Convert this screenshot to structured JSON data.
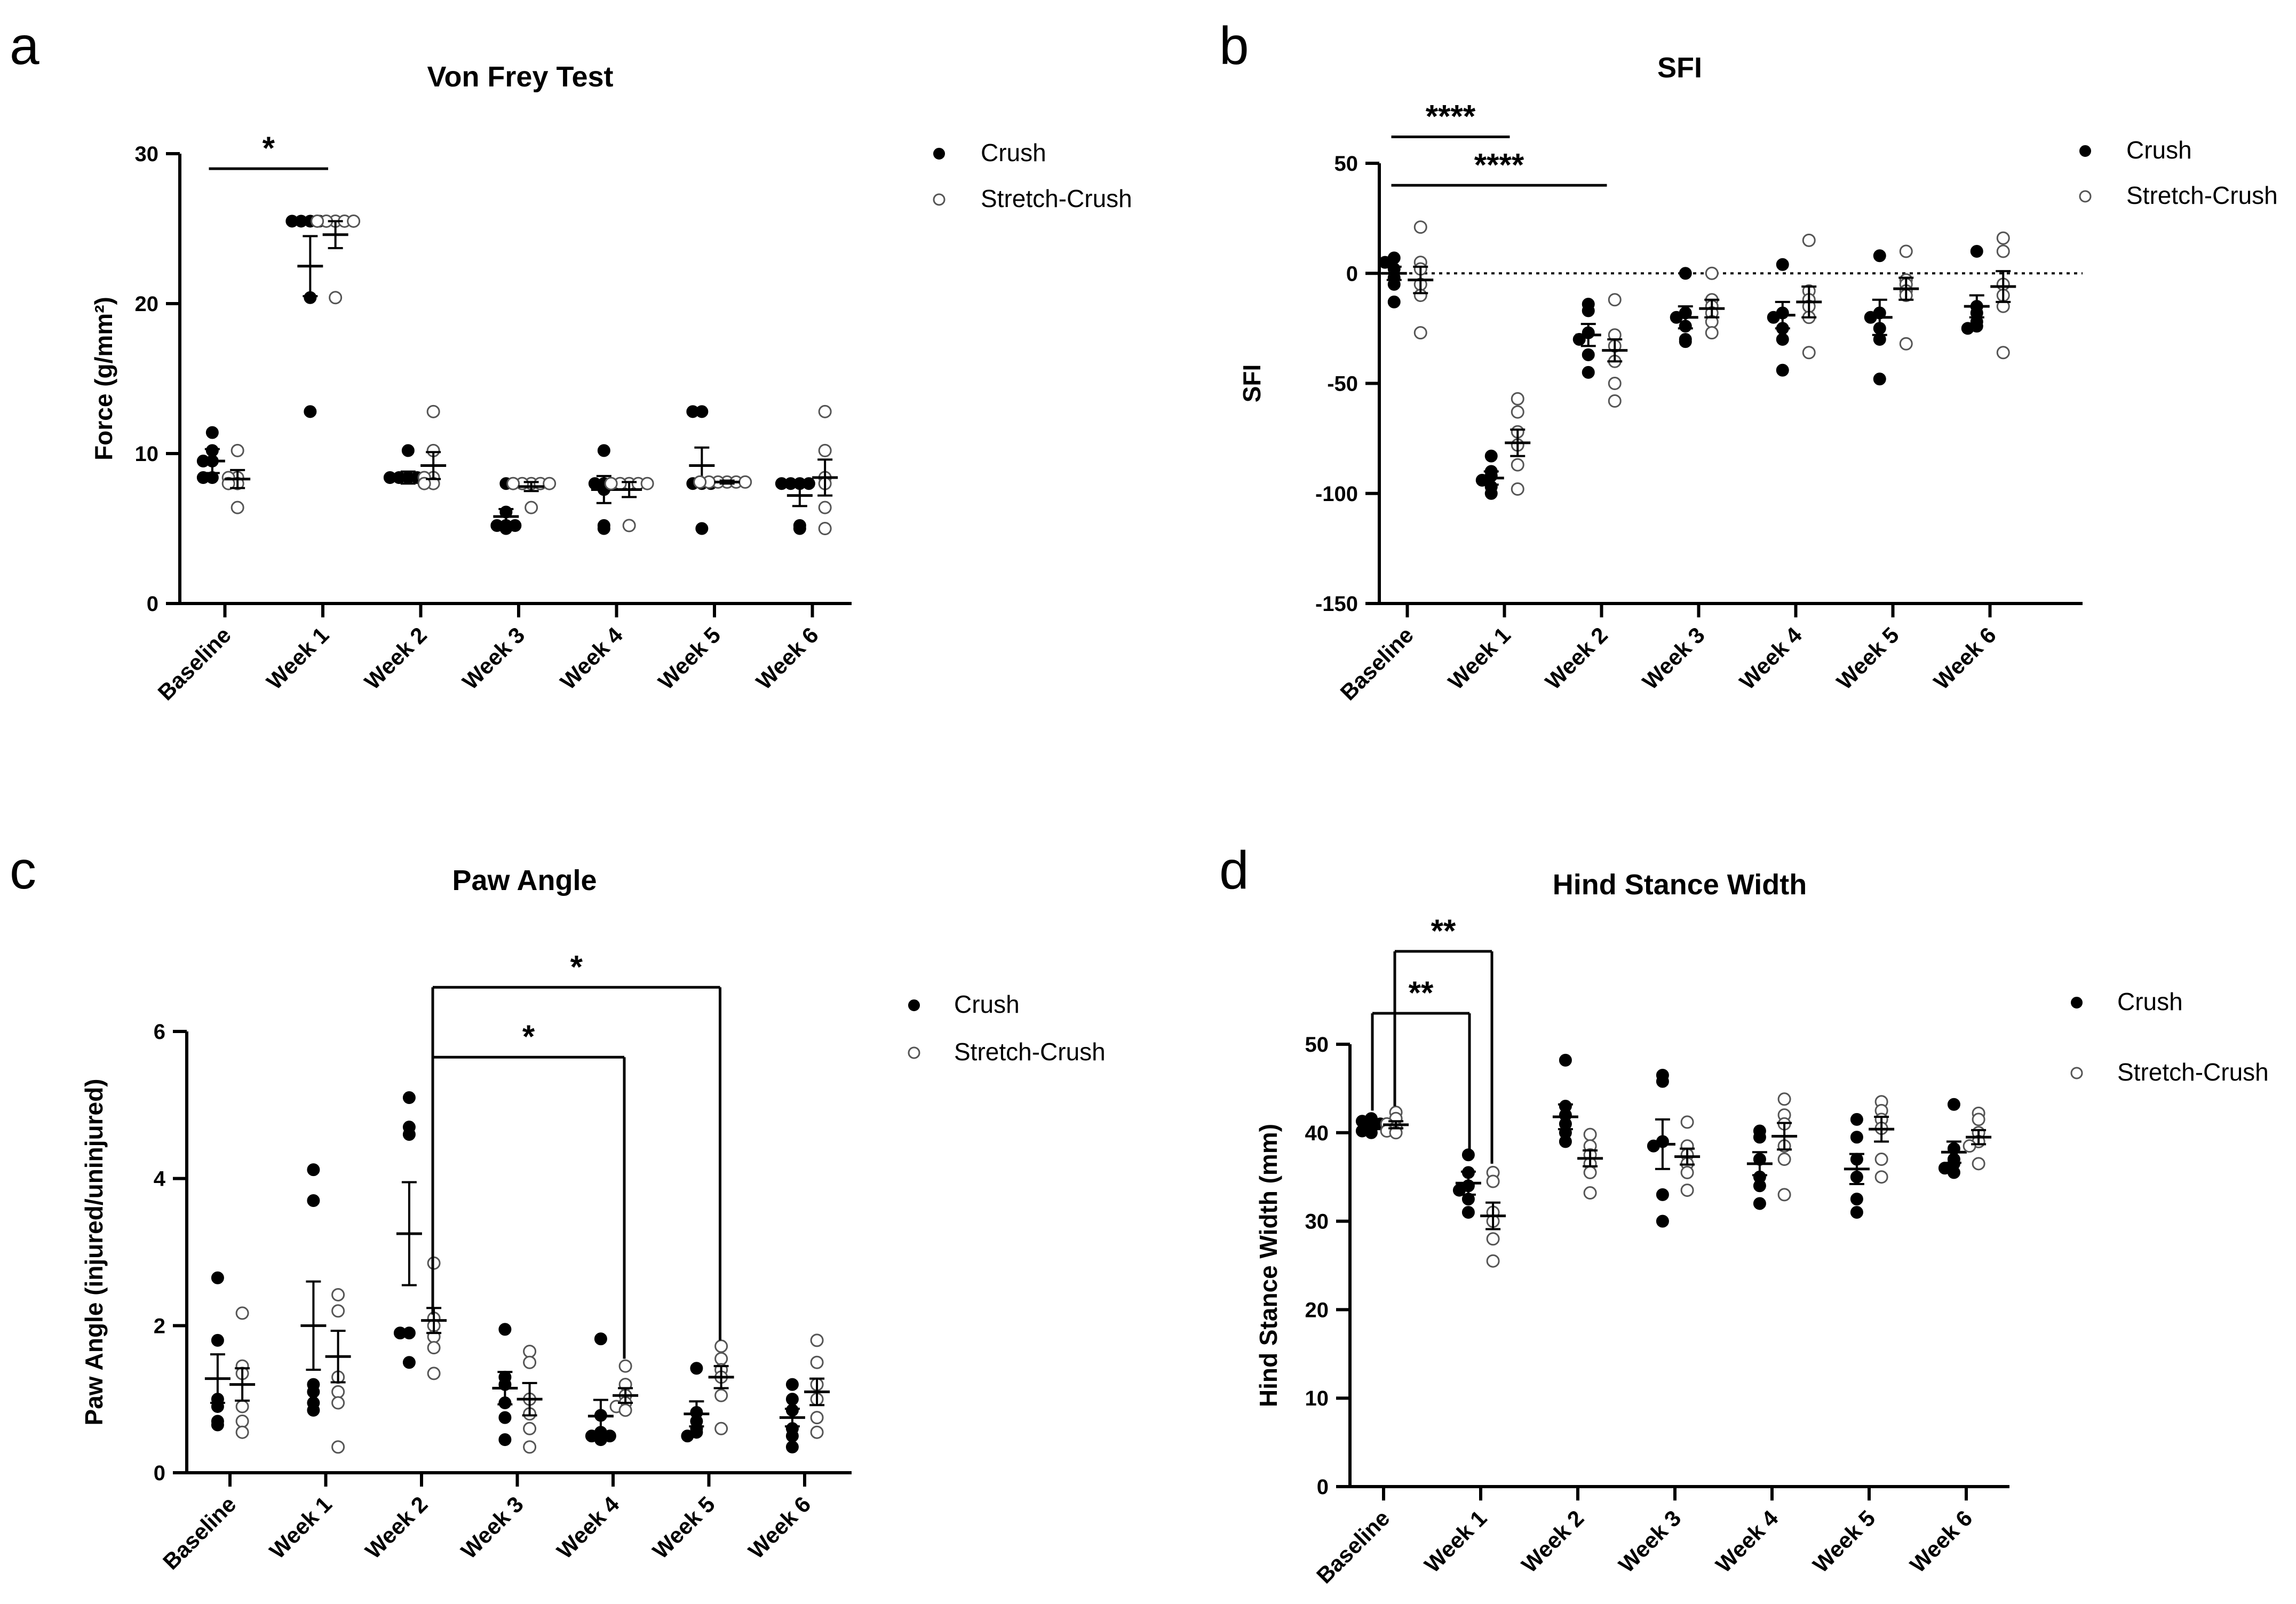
{
  "legend": {
    "series": [
      "Crush",
      "Stretch-Crush"
    ]
  },
  "chart_data": [
    {
      "panel": "a",
      "type": "scatter",
      "title": "Von Frey Test",
      "ylabel": "Force (g/mm²)",
      "xlabel": "",
      "categories": [
        "Baseline",
        "Week 1",
        "Week 2",
        "Week 3",
        "Week 4",
        "Week 5",
        "Week 6"
      ],
      "ylim": [
        0,
        30
      ],
      "yticks": [
        0,
        10,
        20,
        30
      ],
      "ytick_labels": [
        "0",
        "10",
        "20",
        "30"
      ],
      "series": [
        {
          "name": "Crush",
          "marker": "filled",
          "mean": [
            9.5,
            22.5,
            8.4,
            5.8,
            7.6,
            9.2,
            7.2
          ],
          "sem": [
            0.8,
            2.0,
            0.4,
            0.5,
            0.9,
            1.2,
            0.7
          ],
          "points": [
            [
              11.4,
              10.2,
              9.5,
              9.5,
              8.4,
              8.4
            ],
            [
              25.5,
              25.5,
              25.5,
              20.4,
              25.5,
              12.8
            ],
            [
              10.2,
              8.4,
              8.4,
              8.4,
              8.4,
              8.2
            ],
            [
              8.0,
              6.1,
              5.2,
              5.2,
              5.2,
              5.0
            ],
            [
              10.2,
              8.0,
              8.0,
              7.6,
              5.2,
              5.0
            ],
            [
              12.8,
              12.8,
              8.0,
              8.0,
              8.0,
              5.0
            ],
            [
              8.0,
              8.0,
              8.0,
              8.0,
              5.2,
              5.0
            ]
          ]
        },
        {
          "name": "Stretch-Crush",
          "marker": "open",
          "mean": [
            8.3,
            24.6,
            9.2,
            7.8,
            7.6,
            8.1,
            8.4
          ],
          "sem": [
            0.6,
            0.9,
            0.9,
            0.3,
            0.5,
            0.1,
            1.2
          ],
          "points": [
            [
              10.2,
              8.4,
              8.4,
              8.0,
              8.0,
              6.4
            ],
            [
              25.5,
              25.5,
              25.5,
              25.5,
              25.5,
              20.4
            ],
            [
              12.8,
              10.2,
              8.4,
              8.4,
              8.0,
              8.0
            ],
            [
              8.0,
              8.0,
              8.0,
              8.0,
              8.0,
              6.4
            ],
            [
              8.0,
              8.0,
              8.0,
              8.0,
              8.0,
              5.2
            ],
            [
              8.1,
              8.1,
              8.1,
              8.1,
              8.1,
              8.1
            ],
            [
              12.8,
              10.2,
              8.4,
              8.0,
              6.4,
              5.0
            ]
          ]
        }
      ],
      "significance": [
        {
          "label": "*",
          "from": "Baseline",
          "to": "Week 1",
          "y": 29.0
        }
      ]
    },
    {
      "panel": "b",
      "type": "scatter",
      "title": "SFI",
      "ylabel": "SFI",
      "xlabel": "",
      "categories": [
        "Baseline",
        "Week 1",
        "Week 2",
        "Week 3",
        "Week 4",
        "Week 5",
        "Week 6"
      ],
      "ylim": [
        -150,
        50
      ],
      "yticks": [
        -150,
        -100,
        -50,
        0,
        50
      ],
      "ytick_labels": [
        "-150",
        "-100",
        "-50",
        "0",
        "50"
      ],
      "reference_line": 0,
      "series": [
        {
          "name": "Crush",
          "marker": "filled",
          "mean": [
            0,
            -93,
            -28,
            -20,
            -19,
            -20,
            -15
          ],
          "sem": [
            3,
            3,
            5,
            5,
            6,
            8,
            5
          ],
          "points": [
            [
              7,
              5,
              2,
              -2,
              -5,
              -13
            ],
            [
              -83,
              -90,
              -92,
              -94,
              -97,
              -100
            ],
            [
              -14,
              -17,
              -27,
              -30,
              -37,
              -45
            ],
            [
              0,
              -18,
              -20,
              -24,
              -30,
              -31
            ],
            [
              4,
              -18,
              -20,
              -25,
              -30,
              -44
            ],
            [
              8,
              -18,
              -20,
              -25,
              -30,
              -48
            ],
            [
              10,
              -15,
              -18,
              -22,
              -24,
              -25
            ]
          ]
        },
        {
          "name": "Stretch-Crush",
          "marker": "open",
          "mean": [
            -3,
            -77,
            -35,
            -16,
            -13,
            -7,
            -6
          ],
          "sem": [
            6,
            6,
            5,
            4,
            7,
            5,
            7
          ],
          "points": [
            [
              21,
              5,
              2,
              -5,
              -10,
              -27
            ],
            [
              -57,
              -63,
              -72,
              -78,
              -87,
              -98
            ],
            [
              -12,
              -28,
              -33,
              -40,
              -50,
              -58
            ],
            [
              0,
              -12,
              -15,
              -18,
              -22,
              -27
            ],
            [
              15,
              -8,
              -12,
              -15,
              -20,
              -36
            ],
            [
              10,
              -3,
              -5,
              -8,
              -10,
              -32
            ],
            [
              16,
              10,
              -5,
              -10,
              -15,
              -36
            ]
          ]
        }
      ],
      "significance": [
        {
          "label": "****",
          "from": "Baseline",
          "to": "Week 1",
          "y": 62
        },
        {
          "label": "****",
          "from": "Baseline",
          "to": "Week 2",
          "y": 40
        }
      ]
    },
    {
      "panel": "c",
      "type": "scatter",
      "title": "Paw Angle",
      "ylabel": "Paw Angle (injured/uninjured)",
      "xlabel": "",
      "categories": [
        "Baseline",
        "Week 1",
        "Week 2",
        "Week 3",
        "Week 4",
        "Week 5",
        "Week 6"
      ],
      "ylim": [
        0,
        6
      ],
      "yticks": [
        0,
        2,
        4,
        6
      ],
      "ytick_labels": [
        "0",
        "2",
        "4",
        "6"
      ],
      "series": [
        {
          "name": "Crush",
          "marker": "filled",
          "mean": [
            1.28,
            2.0,
            3.25,
            1.15,
            0.77,
            0.8,
            0.75
          ],
          "sem": [
            0.33,
            0.6,
            0.7,
            0.22,
            0.22,
            0.17,
            0.12
          ],
          "points": [
            [
              2.65,
              1.8,
              1.0,
              0.9,
              0.7,
              0.65
            ],
            [
              4.12,
              3.7,
              1.2,
              1.1,
              0.95,
              0.85
            ],
            [
              5.1,
              4.7,
              4.6,
              1.9,
              1.9,
              1.5
            ],
            [
              1.95,
              1.3,
              1.2,
              0.95,
              0.75,
              0.45
            ],
            [
              1.82,
              0.78,
              0.55,
              0.5,
              0.5,
              0.45
            ],
            [
              1.42,
              0.82,
              0.7,
              0.6,
              0.55,
              0.5
            ],
            [
              1.2,
              1.0,
              0.85,
              0.6,
              0.5,
              0.35
            ]
          ]
        },
        {
          "name": "Stretch-Crush",
          "marker": "open",
          "mean": [
            1.2,
            1.58,
            2.07,
            1.0,
            1.05,
            1.3,
            1.1
          ],
          "sem": [
            0.22,
            0.35,
            0.17,
            0.22,
            0.1,
            0.15,
            0.18
          ],
          "points": [
            [
              2.17,
              1.45,
              1.35,
              0.9,
              0.7,
              0.55
            ],
            [
              2.42,
              2.2,
              1.3,
              1.1,
              0.95,
              0.35
            ],
            [
              2.85,
              2.1,
              2.0,
              1.85,
              1.7,
              1.35
            ],
            [
              1.65,
              1.5,
              1.0,
              0.8,
              0.6,
              0.35
            ],
            [
              1.45,
              1.2,
              1.05,
              0.95,
              0.9,
              0.85
            ],
            [
              1.72,
              1.55,
              1.4,
              1.3,
              1.05,
              0.6
            ],
            [
              1.8,
              1.5,
              1.2,
              1.0,
              0.75,
              0.55
            ]
          ]
        }
      ],
      "significance": [
        {
          "label": "*",
          "from": "Week 2",
          "to": "Week 4",
          "y": 5.65,
          "drop_to": [
            2.15,
            1.55
          ]
        },
        {
          "label": "*",
          "from": "Week 2",
          "to": "Week 5",
          "y": 6.6,
          "drop_to": [
            2.15,
            1.8
          ]
        }
      ]
    },
    {
      "panel": "d",
      "type": "scatter",
      "title": "Hind Stance Width",
      "ylabel": "Hind Stance Width (mm)",
      "xlabel": "",
      "categories": [
        "Baseline",
        "Week 1",
        "Week 2",
        "Week 3",
        "Week 4",
        "Week 5",
        "Week 6"
      ],
      "ylim": [
        0,
        50
      ],
      "yticks": [
        0,
        10,
        20,
        30,
        40,
        50
      ],
      "ytick_labels": [
        "0",
        "10",
        "20",
        "30",
        "40",
        "50"
      ],
      "series": [
        {
          "name": "Crush",
          "marker": "filled",
          "mean": [
            40.8,
            34.3,
            41.8,
            38.7,
            36.5,
            35.9,
            37.8
          ],
          "sem": [
            0.4,
            1.3,
            1.4,
            2.8,
            1.3,
            1.7,
            1.2
          ],
          "points": [
            [
              41.6,
              41.3,
              41.0,
              40.5,
              40.2,
              40.0
            ],
            [
              37.5,
              35.5,
              34.0,
              33.5,
              32.5,
              31.0
            ],
            [
              48.2,
              43.0,
              42.0,
              41.0,
              40.0,
              39.0
            ],
            [
              46.5,
              45.8,
              39.0,
              38.5,
              33.0,
              30.0
            ],
            [
              40.2,
              39.5,
              37.0,
              35.0,
              34.0,
              32.0
            ],
            [
              41.5,
              39.5,
              37.0,
              35.0,
              32.5,
              31.0
            ],
            [
              43.2,
              38.2,
              37.0,
              36.5,
              36.0,
              35.5
            ]
          ]
        },
        {
          "name": "Stretch-Crush",
          "marker": "open",
          "mean": [
            40.9,
            30.6,
            37.1,
            37.3,
            39.6,
            40.4,
            39.5
          ],
          "sem": [
            0.4,
            1.5,
            0.9,
            0.9,
            1.5,
            1.4,
            0.8
          ],
          "points": [
            [
              42.3,
              41.6,
              41.0,
              40.6,
              40.2,
              40.0
            ],
            [
              35.5,
              34.5,
              31.0,
              30.0,
              28.0,
              25.5
            ],
            [
              39.8,
              38.5,
              37.5,
              36.5,
              35.5,
              33.2
            ],
            [
              41.2,
              38.5,
              37.5,
              36.5,
              35.5,
              33.5
            ],
            [
              43.8,
              42.0,
              41.0,
              38.5,
              37.0,
              33.0
            ],
            [
              43.5,
              42.5,
              41.5,
              40.5,
              37.0,
              35.0
            ],
            [
              42.2,
              41.5,
              40.0,
              39.0,
              38.5,
              36.5
            ]
          ]
        }
      ],
      "significance": [
        {
          "label": "**",
          "from": "Baseline",
          "to": "Week 1",
          "y": 53.5,
          "drop_to": [
            42.5,
            38.0
          ]
        },
        {
          "label": "**",
          "from": "Baseline",
          "to": "Week 1",
          "second": true,
          "y": 60.5,
          "drop_to": [
            43.0,
            36.5
          ]
        }
      ]
    }
  ]
}
